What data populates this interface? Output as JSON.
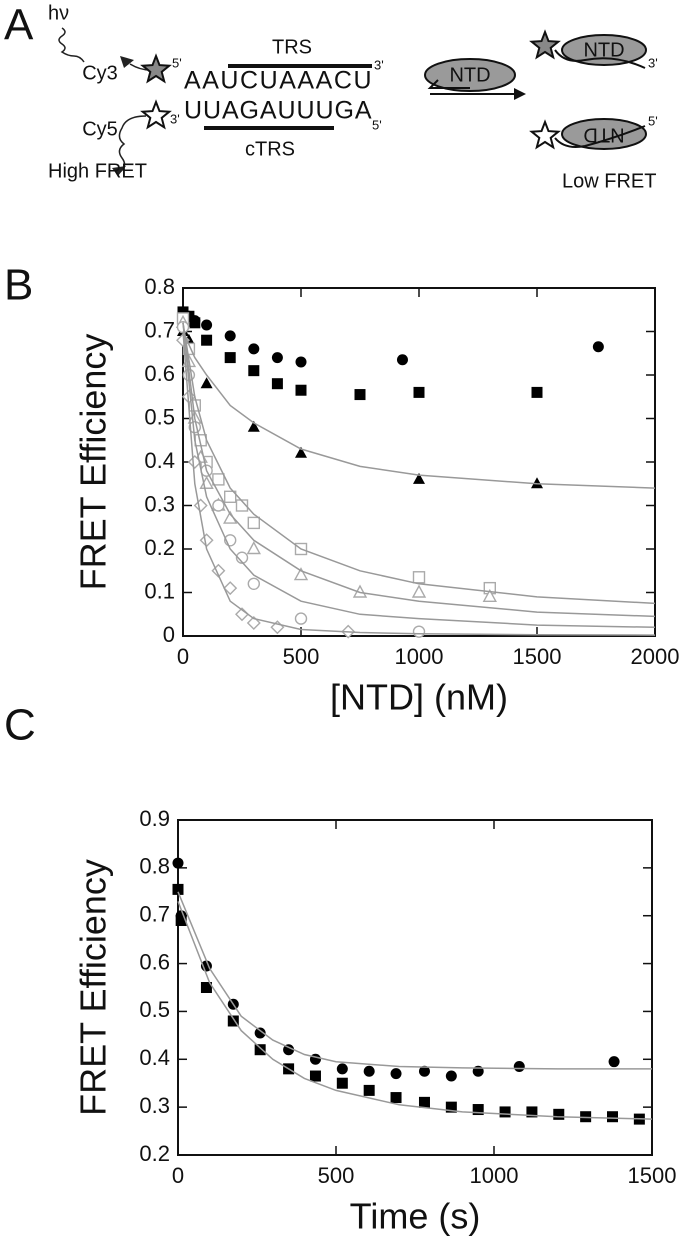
{
  "panel_labels": [
    "A",
    "B",
    "C"
  ],
  "diagram": {
    "photon": "hν",
    "donor": "Cy3",
    "acceptor": "Cy5",
    "top_strand": "AAUCUAAACU",
    "bottom_strand": "UUAGAUUUGA",
    "top_motif": "TRS",
    "bottom_motif": "cTRS",
    "protein": "NTD",
    "five_prime": "5'",
    "three_prime": "3'",
    "high_state": "High FRET",
    "low_state": "Low FRET"
  },
  "chart_data": [
    {
      "type": "scatter",
      "xlabel": "[NTD] (nM)",
      "ylabel": "FRET Efficiency",
      "xlim": [
        0,
        2000
      ],
      "xticks": [
        0,
        500,
        1000,
        1500,
        2000
      ],
      "ylim": [
        0,
        0.8
      ],
      "yticks": [
        0,
        0.1,
        0.2,
        0.3,
        0.4,
        0.5,
        0.6,
        0.7,
        0.8
      ],
      "grid": false,
      "series": [
        {
          "kind": "points",
          "marker": "circle",
          "filled": true,
          "color": "#000000",
          "x": [
            0,
            25,
            50,
            100,
            200,
            300,
            400,
            500,
            930,
            1760
          ],
          "values": [
            0.74,
            0.735,
            0.725,
            0.715,
            0.69,
            0.66,
            0.64,
            0.63,
            0.635,
            0.665
          ]
        },
        {
          "kind": "points",
          "marker": "square",
          "filled": true,
          "color": "#000000",
          "x": [
            0,
            25,
            50,
            100,
            200,
            300,
            400,
            500,
            750,
            1000,
            1500
          ],
          "values": [
            0.745,
            0.735,
            0.72,
            0.68,
            0.64,
            0.61,
            0.58,
            0.565,
            0.555,
            0.56,
            0.56
          ]
        },
        {
          "kind": "points",
          "marker": "triangle",
          "filled": true,
          "color": "#000000",
          "x": [
            0,
            25,
            100,
            300,
            500,
            1000,
            1500
          ],
          "values": [
            0.7,
            0.68,
            0.58,
            0.48,
            0.42,
            0.36,
            0.35
          ]
        },
        {
          "kind": "points",
          "marker": "square",
          "filled": false,
          "color": "#aaaaaa",
          "x": [
            0,
            25,
            50,
            75,
            100,
            150,
            200,
            250,
            300,
            500,
            1000,
            1300
          ],
          "values": [
            0.73,
            0.66,
            0.53,
            0.45,
            0.4,
            0.36,
            0.32,
            0.3,
            0.26,
            0.2,
            0.135,
            0.11
          ]
        },
        {
          "kind": "points",
          "marker": "triangle",
          "filled": false,
          "color": "#aaaaaa",
          "x": [
            0,
            25,
            50,
            75,
            100,
            150,
            200,
            300,
            500,
            750,
            1000,
            1300
          ],
          "values": [
            0.72,
            0.63,
            0.5,
            0.41,
            0.35,
            0.3,
            0.27,
            0.2,
            0.14,
            0.1,
            0.1,
            0.09
          ]
        },
        {
          "kind": "points",
          "marker": "circle",
          "filled": false,
          "color": "#aaaaaa",
          "x": [
            0,
            25,
            50,
            100,
            150,
            200,
            250,
            300,
            500,
            1000
          ],
          "values": [
            0.71,
            0.6,
            0.48,
            0.38,
            0.3,
            0.22,
            0.18,
            0.12,
            0.04,
            0.01
          ]
        },
        {
          "kind": "points",
          "marker": "diamond",
          "filled": false,
          "color": "#aaaaaa",
          "x": [
            0,
            25,
            50,
            75,
            100,
            150,
            200,
            250,
            300,
            400,
            700
          ],
          "values": [
            0.68,
            0.55,
            0.4,
            0.3,
            0.22,
            0.15,
            0.11,
            0.05,
            0.03,
            0.02,
            0.01
          ]
        },
        {
          "kind": "fit",
          "color": "#999999",
          "x": [
            0,
            50,
            100,
            200,
            300,
            500,
            750,
            1000,
            1500,
            2000
          ],
          "values": [
            0.7,
            0.64,
            0.6,
            0.53,
            0.49,
            0.43,
            0.39,
            0.37,
            0.35,
            0.34
          ]
        },
        {
          "kind": "fit",
          "color": "#999999",
          "x": [
            0,
            50,
            100,
            200,
            300,
            500,
            750,
            1000,
            1500,
            2000
          ],
          "values": [
            0.72,
            0.55,
            0.45,
            0.34,
            0.28,
            0.2,
            0.15,
            0.12,
            0.09,
            0.075
          ]
        },
        {
          "kind": "fit",
          "color": "#999999",
          "x": [
            0,
            50,
            100,
            200,
            300,
            500,
            750,
            1000,
            1500,
            2000
          ],
          "values": [
            0.72,
            0.5,
            0.38,
            0.28,
            0.22,
            0.15,
            0.1,
            0.08,
            0.055,
            0.045
          ]
        },
        {
          "kind": "fit",
          "color": "#999999",
          "x": [
            0,
            50,
            100,
            200,
            300,
            500,
            750,
            1000,
            1500,
            2000
          ],
          "values": [
            0.72,
            0.45,
            0.32,
            0.2,
            0.14,
            0.08,
            0.05,
            0.04,
            0.025,
            0.02
          ]
        },
        {
          "kind": "fit",
          "color": "#999999",
          "x": [
            0,
            50,
            100,
            200,
            300,
            500,
            750,
            1000,
            1500,
            2000
          ],
          "values": [
            0.7,
            0.35,
            0.2,
            0.08,
            0.04,
            0.015,
            0.008,
            0.005,
            0.003,
            0.002
          ]
        }
      ]
    },
    {
      "type": "scatter",
      "xlabel": "Time (s)",
      "ylabel": "FRET Efficiency",
      "xlim": [
        0,
        1500
      ],
      "xticks": [
        0,
        500,
        1000,
        1500
      ],
      "ylim": [
        0.2,
        0.9
      ],
      "yticks": [
        0.2,
        0.3,
        0.4,
        0.5,
        0.6,
        0.7,
        0.8,
        0.9
      ],
      "grid": false,
      "series": [
        {
          "kind": "points",
          "marker": "circle",
          "filled": true,
          "color": "#000000",
          "x": [
            0,
            10,
            90,
            175,
            260,
            350,
            435,
            520,
            605,
            690,
            780,
            865,
            950,
            1080,
            1380
          ],
          "values": [
            0.81,
            0.7,
            0.595,
            0.515,
            0.455,
            0.42,
            0.4,
            0.38,
            0.375,
            0.37,
            0.375,
            0.365,
            0.375,
            0.385,
            0.395
          ]
        },
        {
          "kind": "points",
          "marker": "square",
          "filled": true,
          "color": "#000000",
          "x": [
            0,
            10,
            90,
            175,
            260,
            350,
            435,
            520,
            605,
            690,
            780,
            865,
            950,
            1035,
            1120,
            1205,
            1290,
            1375,
            1460
          ],
          "values": [
            0.755,
            0.69,
            0.55,
            0.48,
            0.42,
            0.38,
            0.365,
            0.35,
            0.335,
            0.32,
            0.31,
            0.3,
            0.295,
            0.29,
            0.29,
            0.285,
            0.28,
            0.28,
            0.275
          ]
        },
        {
          "kind": "fit",
          "color": "#999999",
          "x": [
            0,
            100,
            200,
            300,
            400,
            500,
            700,
            900,
            1200,
            1500
          ],
          "values": [
            0.75,
            0.59,
            0.49,
            0.44,
            0.41,
            0.395,
            0.385,
            0.382,
            0.38,
            0.38
          ]
        },
        {
          "kind": "fit",
          "color": "#999999",
          "x": [
            0,
            100,
            200,
            300,
            400,
            500,
            700,
            900,
            1200,
            1500
          ],
          "values": [
            0.73,
            0.56,
            0.46,
            0.4,
            0.36,
            0.335,
            0.305,
            0.29,
            0.28,
            0.275
          ]
        }
      ]
    }
  ]
}
